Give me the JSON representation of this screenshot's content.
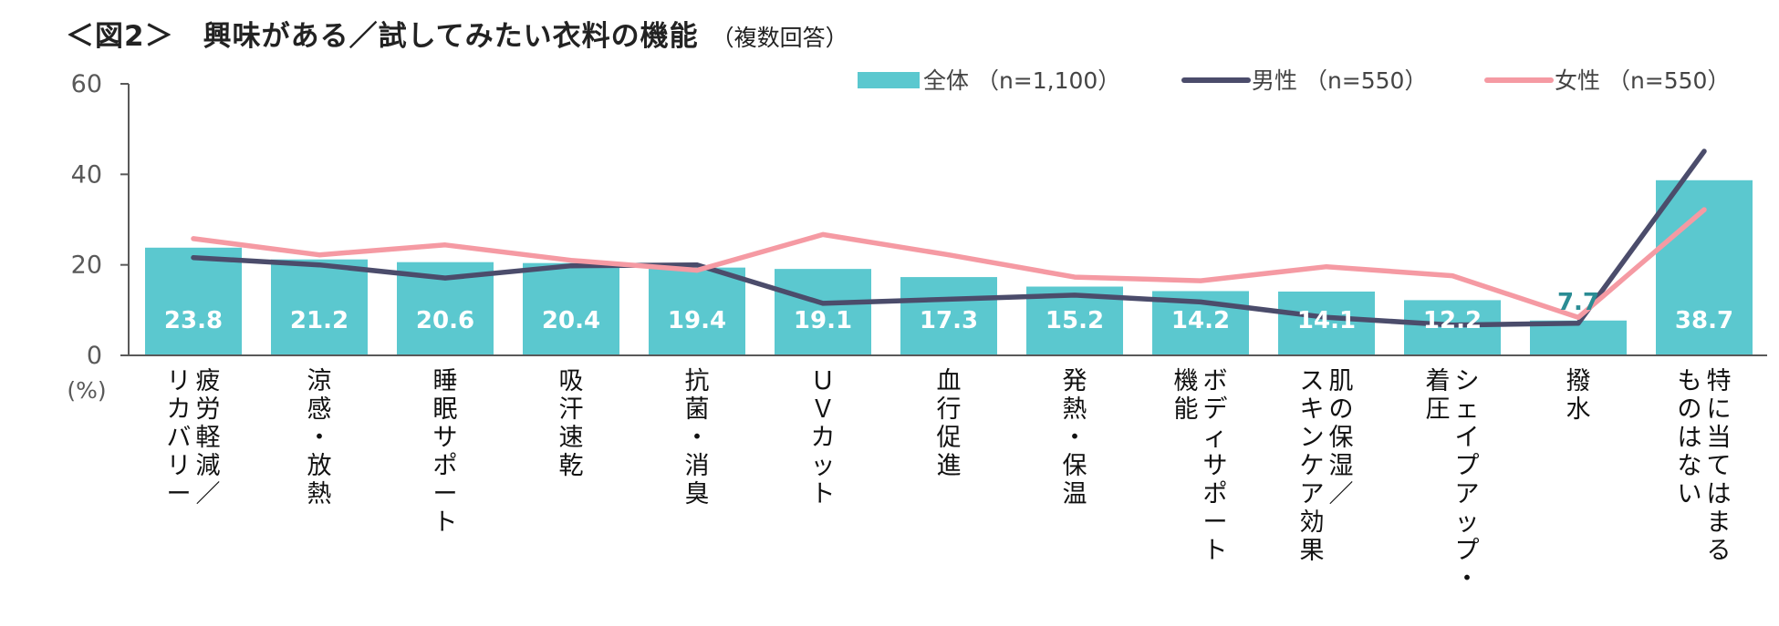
{
  "title": {
    "main": "＜図2＞　興味がある／試してみたい衣料の機能",
    "sub": "（複数回答）"
  },
  "chart_data": {
    "type": "bar",
    "title": "＜図2＞　興味がある／試してみたい衣料の機能（複数回答）",
    "ylabel": "(%)",
    "ylim": [
      0,
      60
    ],
    "yticks": [
      "0",
      "20",
      "40",
      "60"
    ],
    "legend_position": "top-right",
    "categories": [
      [
        "疲労軽減／",
        "リカバリー"
      ],
      [
        "涼感・放熱"
      ],
      [
        "睡眠サポート"
      ],
      [
        "吸汗速乾"
      ],
      [
        "抗菌・消臭"
      ],
      [
        "ＵＶカット"
      ],
      [
        "血行促進"
      ],
      [
        "発熱・保温"
      ],
      [
        "ボディサポート",
        "機能"
      ],
      [
        "肌の保湿／",
        "スキンケア効果"
      ],
      [
        "シェイプアップ・",
        "着圧"
      ],
      [
        "撥水"
      ],
      [
        "特に当てはまる",
        "ものはない"
      ]
    ],
    "series": [
      {
        "name": "全体 （n=1,100）",
        "kind": "bar",
        "color": "#5bc8cf",
        "values": [
          23.8,
          21.2,
          20.6,
          20.4,
          19.4,
          19.1,
          17.3,
          15.2,
          14.2,
          14.1,
          12.2,
          7.7,
          38.7
        ],
        "labels": [
          "23.8",
          "21.2",
          "20.6",
          "20.4",
          "19.4",
          "19.1",
          "17.3",
          "15.2",
          "14.2",
          "14.1",
          "12.2",
          "7.7",
          "38.7"
        ]
      },
      {
        "name": "男性 （n=550）",
        "kind": "line",
        "color": "#4b4c6b",
        "values": [
          21.6,
          20.0,
          17.1,
          19.8,
          20.0,
          11.5,
          12.4,
          13.3,
          11.8,
          8.4,
          6.7,
          7.1,
          45.1
        ]
      },
      {
        "name": "女性 （n=550）",
        "kind": "line",
        "color": "#f59aa3",
        "values": [
          25.8,
          22.2,
          24.4,
          21.0,
          18.8,
          26.7,
          22.2,
          17.3,
          16.5,
          19.6,
          17.6,
          8.4,
          32.2
        ]
      }
    ]
  }
}
